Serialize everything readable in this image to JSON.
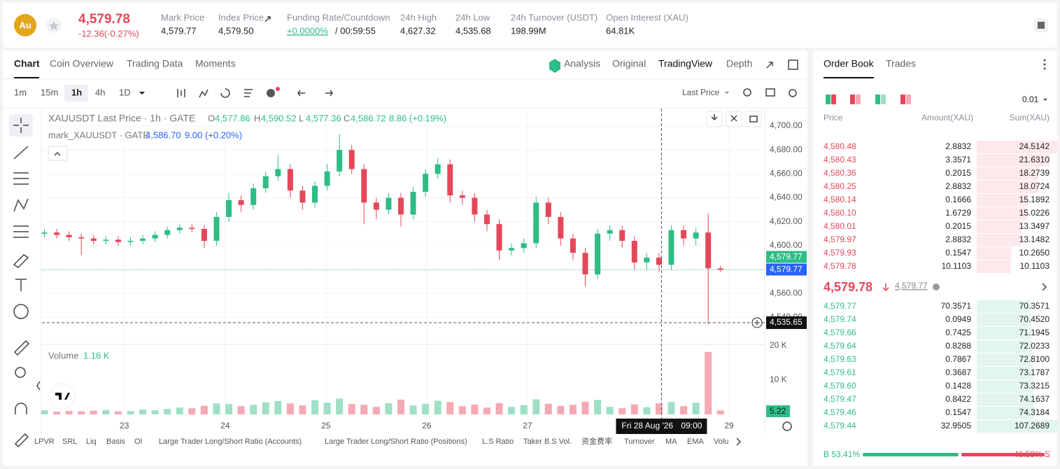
{
  "header": {
    "symbol_icon": "Au",
    "last_price": "4,579.78",
    "change": "-12.36(-0.27%)",
    "stats": [
      {
        "label": "Mark Price",
        "value": "4,579.77"
      },
      {
        "label": "Index Price",
        "value": "4,579.50"
      },
      {
        "label": "Funding Rate/Countdown",
        "value": "+0.0000%",
        "value2": "/ 00:59:55"
      },
      {
        "label": "24h High",
        "value": "4,627.32"
      },
      {
        "label": "24h Low",
        "value": "4,535.68"
      },
      {
        "label": "24h Turnover (USDT)",
        "value": "198.99M"
      },
      {
        "label": "Open Interest (XAU)",
        "value": "64.81K"
      }
    ]
  },
  "chart_tabs": [
    "Chart",
    "Coin Overview",
    "Trading Data",
    "Moments"
  ],
  "view_tabs": [
    "Analysis",
    "Original",
    "TradingView",
    "Depth"
  ],
  "intervals": [
    "1m",
    "15m",
    "1h",
    "4h",
    "1D"
  ],
  "price_source": "Last Price",
  "chart_data": {
    "type": "candlestick",
    "title": "XAUUSDT Last Price · 1h · GATE",
    "ohlc_legend": [
      {
        "key": "O",
        "value": "4,577.86"
      },
      {
        "key": "H",
        "value": "4,590.52"
      },
      {
        "key": "L",
        "value": "4,577.36"
      },
      {
        "key": "C",
        "value": "4,586.72"
      }
    ],
    "legend_change": "8.86 (+0.19%)",
    "mark_title": "mark_XAUUSDT · GATE",
    "mark_value": "4,586.70",
    "mark_change": "9.00 (+0.20%)",
    "up_color": "#2ebd85",
    "down_color": "#e5475a",
    "open": [
      4610,
      4611,
      4609,
      4607,
      4606,
      4604,
      4605,
      4603,
      4604,
      4606,
      4609,
      4613,
      4615,
      4614,
      4604,
      4624,
      4638,
      4634,
      4648,
      4658,
      4664,
      4646,
      4636,
      4650,
      4662,
      4680,
      4664,
      4636,
      4630,
      4640,
      4626,
      4645,
      4660,
      4668,
      4642,
      4640,
      4626,
      4618,
      4596,
      4598,
      4602,
      4636,
      4624,
      4606,
      4594,
      4576,
      4610,
      4613,
      4604,
      4586,
      4590,
      4584,
      4613,
      4606,
      4611,
      4581
    ],
    "high": [
      4614,
      4614,
      4612,
      4610,
      4609,
      4608,
      4608,
      4607,
      4609,
      4612,
      4616,
      4618,
      4618,
      4617,
      4628,
      4644,
      4642,
      4652,
      4662,
      4676,
      4668,
      4650,
      4654,
      4668,
      4693,
      4684,
      4668,
      4640,
      4644,
      4644,
      4649,
      4664,
      4673,
      4672,
      4646,
      4644,
      4630,
      4622,
      4602,
      4606,
      4641,
      4640,
      4628,
      4610,
      4598,
      4614,
      4617,
      4617,
      4608,
      4594,
      4594,
      4617,
      4617,
      4615,
      4627,
      4583
    ],
    "low": [
      4607,
      4606,
      4604,
      4592,
      4601,
      4601,
      4600,
      4600,
      4601,
      4603,
      4606,
      4610,
      4611,
      4598,
      4600,
      4620,
      4628,
      4630,
      4644,
      4654,
      4640,
      4630,
      4632,
      4646,
      4658,
      4660,
      4618,
      4622,
      4626,
      4616,
      4622,
      4641,
      4656,
      4636,
      4634,
      4620,
      4612,
      4588,
      4592,
      4594,
      4598,
      4618,
      4600,
      4588,
      4566,
      4572,
      4604,
      4598,
      4580,
      4580,
      4578,
      4580,
      4600,
      4600,
      4534,
      4578
    ],
    "close": [
      4611,
      4609,
      4607,
      4606,
      4604,
      4605,
      4603,
      4604,
      4606,
      4609,
      4613,
      4615,
      4614,
      4604,
      4624,
      4638,
      4634,
      4648,
      4658,
      4664,
      4646,
      4636,
      4650,
      4662,
      4680,
      4664,
      4636,
      4630,
      4640,
      4626,
      4645,
      4660,
      4668,
      4642,
      4640,
      4626,
      4618,
      4596,
      4598,
      4602,
      4636,
      4624,
      4606,
      4594,
      4576,
      4610,
      4613,
      4604,
      4586,
      4590,
      4584,
      4613,
      4606,
      4611,
      4581,
      4579.77
    ],
    "xlim": [
      -0.2,
      58.6
    ],
    "xticks": [
      {
        "value": 6.5,
        "label": "23"
      },
      {
        "value": 14.7,
        "label": "24"
      },
      {
        "value": 22.9,
        "label": "25"
      },
      {
        "value": 31.1,
        "label": "26"
      },
      {
        "value": 39.3,
        "label": "27"
      },
      {
        "value": 55.7,
        "label": "29"
      }
    ],
    "ylim": [
      4517.5,
      4714.6
    ],
    "yticks": [
      {
        "value": 4700,
        "label": "4,700.00"
      },
      {
        "value": 4680,
        "label": "4,680.00"
      },
      {
        "value": 4660,
        "label": "4,660.00"
      },
      {
        "value": 4640,
        "label": "4,640.00"
      },
      {
        "value": 4620,
        "label": "4,620.00"
      },
      {
        "value": 4600,
        "label": "4,600.00"
      },
      {
        "value": 4580,
        "label": "4,580.00"
      },
      {
        "value": 4560,
        "label": "4,560.00"
      },
      {
        "value": 4540,
        "label": "4,540.00"
      }
    ],
    "last_price_line": {
      "value": 4579.77,
      "label": "4,579.77"
    },
    "mark_price_tag": "4,579.77",
    "crosshair": {
      "x": 50.2,
      "y": {
        "value": 4535.65,
        "label": "4,535.65"
      },
      "date": "Fri 28 Aug '26",
      "time": "09:00"
    },
    "volume": {
      "title": "Volume",
      "last_label": "1.16 K",
      "tag": "5.22",
      "up_color": "#9fe0c4",
      "down_color": "#f5a9b4",
      "values": [
        1200,
        800,
        1000,
        900,
        1100,
        1300,
        900,
        1000,
        1400,
        1200,
        1600,
        2000,
        1800,
        2500,
        3200,
        3000,
        2400,
        2800,
        3500,
        3900,
        3200,
        2600,
        4100,
        3400,
        4600,
        3000,
        2800,
        2200,
        3300,
        4300,
        2600,
        3100,
        4000,
        3600,
        2400,
        2900,
        2000,
        3300,
        2200,
        2700,
        4400,
        3100,
        2500,
        2800,
        3700,
        4200,
        2200,
        1800,
        2900,
        2100,
        3200,
        3600,
        2400,
        3400,
        18200,
        1160
      ],
      "ylim": [
        0,
        20400
      ],
      "yticks": [
        {
          "value": 10000,
          "label": "10 K"
        },
        {
          "value": 20000,
          "label": "20 K"
        }
      ]
    }
  },
  "indicators": [
    "LPVR",
    "SRL",
    "Liq",
    "Basis",
    "OI",
    "Large Trader Long/Short Ratio (Accounts)",
    "Large Trader Long/Short Ratio (Positions)",
    "L.S Ratio",
    "Taker B.S Vol.",
    "资金费率",
    "Turnover",
    "MA",
    "EMA",
    "Volu"
  ],
  "order_book": {
    "tabs": [
      "Order Book",
      "Trades"
    ],
    "precision": "0.01",
    "columns": [
      "Price",
      "Amount(XAU)",
      "Sum(XAU)"
    ],
    "asks": {
      "price": [
        "4,580.48",
        "4,580.43",
        "4,580.36",
        "4,580.25",
        "4,580.14",
        "4,580.10",
        "4,580.01",
        "4,579.97",
        "4,579.93",
        "4,579.78"
      ],
      "amount": [
        2.8832,
        3.3571,
        0.2015,
        2.8832,
        0.1666,
        1.6729,
        0.2015,
        2.8832,
        0.1547,
        10.1103
      ],
      "sum": {
        "values": [
          24.5142,
          21.631,
          18.2739,
          18.0724,
          15.1892,
          15.0226,
          13.3497,
          13.1482,
          10.265,
          10.1103
        ],
        "value_labels": [
          "24.5142",
          "21.6310",
          "18.2739",
          "18.0724",
          "15.1892",
          "15.0226",
          "13.3497",
          "13.1482",
          "10.2650",
          "10.1103"
        ]
      }
    },
    "mid_price": "4,579.78",
    "mid_mark": "4,579.77",
    "bids": {
      "price": [
        "4,579.77",
        "4,579.74",
        "4,579.66",
        "4,579.64",
        "4,579.63",
        "4,579.61",
        "4,579.60",
        "4,579.47",
        "4,579.46",
        "4,579.44"
      ],
      "amount": [
        70.3571,
        0.0949,
        0.7425,
        0.8288,
        0.7867,
        0.3687,
        0.1428,
        0.8422,
        0.1547,
        32.9505
      ],
      "sum": {
        "values": [
          70.3571,
          70.452,
          71.1945,
          72.0233,
          72.81,
          73.1787,
          73.3215,
          74.1637,
          74.3184,
          107.2689
        ],
        "value_labels": [
          "70.3571",
          "70.4520",
          "71.1945",
          "72.0233",
          "72.8100",
          "73.1787",
          "73.3215",
          "74.1637",
          "74.3184",
          "107.2689"
        ]
      }
    },
    "ratio": {
      "buy": {
        "value": 53.41,
        "label": "B 53.41%"
      },
      "sell": {
        "value": 46.59,
        "label": "46.59% S"
      }
    }
  }
}
